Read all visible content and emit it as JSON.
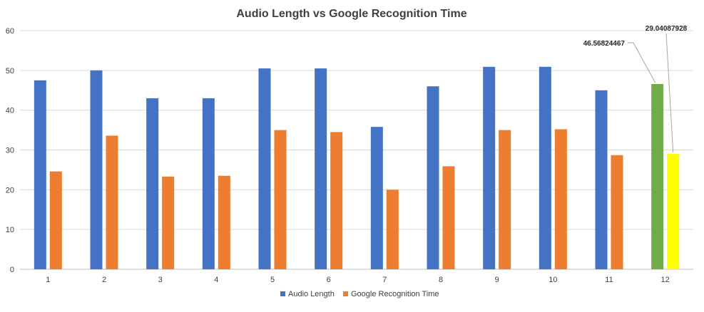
{
  "chart_data": {
    "type": "bar",
    "title": "Audio Length vs Google Recognition Time",
    "xlabel": "",
    "ylabel": "",
    "ylim": [
      0,
      60
    ],
    "yticks": [
      "0",
      "10",
      "20",
      "30",
      "40",
      "50",
      "60"
    ],
    "categories": [
      "1",
      "2",
      "3",
      "4",
      "5",
      "6",
      "7",
      "8",
      "9",
      "10",
      "11",
      "12"
    ],
    "grid": true,
    "legend_position": "bottom",
    "series": [
      {
        "name": "Audio Length",
        "color": "#4472c4",
        "values": [
          47.5,
          50.0,
          43.0,
          43.0,
          50.5,
          50.5,
          35.8,
          46.0,
          50.9,
          50.9,
          45.0,
          46.56824467
        ]
      },
      {
        "name": "Google Recognition Time",
        "color": "#ed7d31",
        "values": [
          24.6,
          33.6,
          23.3,
          23.5,
          35.0,
          34.5,
          20.0,
          25.9,
          35.0,
          35.2,
          28.7,
          29.04087928
        ]
      }
    ],
    "highlights": [
      {
        "series": 0,
        "category": "12",
        "color": "#70ad47",
        "label": "46.56824467"
      },
      {
        "series": 1,
        "category": "12",
        "color": "#ffff00",
        "label": "29.04087928"
      }
    ]
  }
}
